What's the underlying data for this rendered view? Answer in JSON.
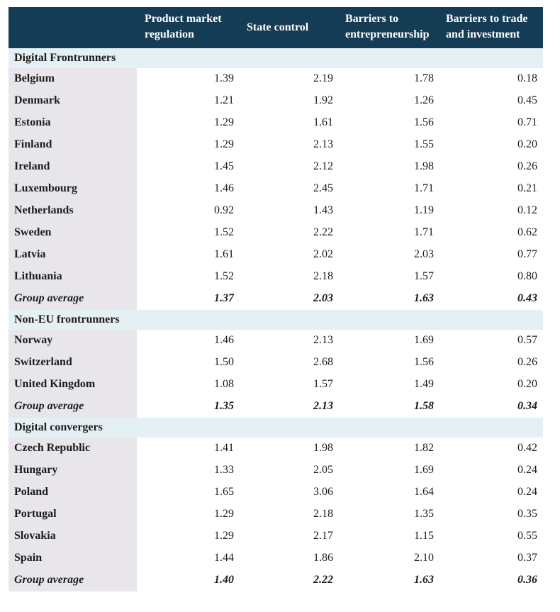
{
  "headers": {
    "pmr": "Product market regulation",
    "pmr_line1": "Product market",
    "pmr_line2": "regulation",
    "state": "State control",
    "barriers_ent_line1": "Barriers to",
    "barriers_ent_line2": "entrepreneurship",
    "barriers_trade_line1": "Barriers to trade",
    "barriers_trade_line2": "and investment"
  },
  "groups": [
    {
      "title": "Digital Frontrunners",
      "rows": [
        {
          "country": "Belgium",
          "v": [
            "1.39",
            "2.19",
            "1.78",
            "0.18"
          ]
        },
        {
          "country": "Denmark",
          "v": [
            "1.21",
            "1.92",
            "1.26",
            "0.45"
          ]
        },
        {
          "country": "Estonia",
          "v": [
            "1.29",
            "1.61",
            "1.56",
            "0.71"
          ]
        },
        {
          "country": "Finland",
          "v": [
            "1.29",
            "2.13",
            "1.55",
            "0.20"
          ]
        },
        {
          "country": "Ireland",
          "v": [
            "1.45",
            "2.12",
            "1.98",
            "0.26"
          ]
        },
        {
          "country": "Luxembourg",
          "v": [
            "1.46",
            "2.45",
            "1.71",
            "0.21"
          ]
        },
        {
          "country": "Netherlands",
          "v": [
            "0.92",
            "1.43",
            "1.19",
            "0.12"
          ]
        },
        {
          "country": "Sweden",
          "v": [
            "1.52",
            "2.22",
            "1.71",
            "0.62"
          ]
        },
        {
          "country": "Latvia",
          "v": [
            "1.61",
            "2.02",
            "2.03",
            "0.77"
          ]
        },
        {
          "country": "Lithuania",
          "v": [
            "1.52",
            "2.18",
            "1.57",
            "0.80"
          ]
        }
      ],
      "average": {
        "label": "Group average",
        "v": [
          "1.37",
          "2.03",
          "1.63",
          "0.43"
        ]
      }
    },
    {
      "title": "Non-EU frontrunners",
      "rows": [
        {
          "country": "Norway",
          "v": [
            "1.46",
            "2.13",
            "1.69",
            "0.57"
          ]
        },
        {
          "country": "Switzerland",
          "v": [
            "1.50",
            "2.68",
            "1.56",
            "0.26"
          ]
        },
        {
          "country": "United Kingdom",
          "v": [
            "1.08",
            "1.57",
            "1.49",
            "0.20"
          ]
        }
      ],
      "average": {
        "label": "Group average",
        "v": [
          "1.35",
          "2.13",
          "1.58",
          "0.34"
        ]
      }
    },
    {
      "title": "Digital convergers",
      "rows": [
        {
          "country": "Czech Republic",
          "v": [
            "1.41",
            "1.98",
            "1.82",
            "0.42"
          ]
        },
        {
          "country": "Hungary",
          "v": [
            "1.33",
            "2.05",
            "1.69",
            "0.24"
          ]
        },
        {
          "country": "Poland",
          "v": [
            "1.65",
            "3.06",
            "1.64",
            "0.24"
          ]
        },
        {
          "country": "Portugal",
          "v": [
            "1.29",
            "2.18",
            "1.35",
            "0.35"
          ]
        },
        {
          "country": "Slovakia",
          "v": [
            "1.29",
            "2.17",
            "1.15",
            "0.55"
          ]
        },
        {
          "country": "Spain",
          "v": [
            "1.44",
            "1.86",
            "2.10",
            "0.37"
          ]
        }
      ],
      "average": {
        "label": "Group average",
        "v": [
          "1.40",
          "2.22",
          "1.63",
          "0.36"
        ]
      }
    }
  ]
}
